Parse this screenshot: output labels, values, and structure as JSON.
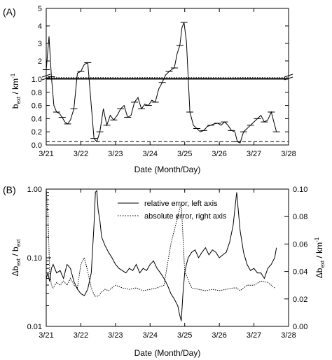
{
  "chart_data": [
    {
      "panel": "(A)",
      "type": "line",
      "ylabel_main": "b",
      "ylabel_sub": "ext",
      "ylabel_unit": " / km",
      "ylabel_exp": "-1",
      "xlabel": "Date (Month/Day)",
      "x_ticks": [
        "3/21",
        "3/22",
        "3/23",
        "3/24",
        "3/25",
        "3/26",
        "3/27",
        "3/28"
      ],
      "xlim": [
        21,
        28
      ],
      "y_upper_ticks": [
        "5",
        "4",
        "3",
        "2",
        "1"
      ],
      "y_upper_range": [
        1,
        5
      ],
      "y_lower_ticks": [
        "1.0",
        "0.8",
        "0.6",
        "0.4",
        "0.2",
        "0.0"
      ],
      "y_lower_range": [
        0,
        1.0
      ],
      "ref_lines": [
        {
          "style": "dotted",
          "value": 1.05
        },
        {
          "style": "dashed",
          "value": 0.05
        }
      ],
      "series": [
        {
          "style": "solid",
          "x": [
            21.0,
            21.08,
            21.15,
            21.22,
            21.3,
            21.38,
            21.46,
            21.54,
            21.62,
            21.7,
            21.8,
            21.9,
            22.0,
            22.1,
            22.2,
            22.3,
            22.38,
            22.46,
            22.55,
            22.65,
            22.75,
            22.85,
            22.95,
            23.05,
            23.15,
            23.25,
            23.35,
            23.45,
            23.55,
            23.65,
            23.75,
            23.85,
            23.95,
            24.05,
            24.15,
            24.25,
            24.35,
            24.45,
            24.55,
            24.62,
            24.7,
            24.78,
            24.86,
            24.92,
            24.98,
            25.05,
            25.15,
            25.25,
            25.35,
            25.45,
            25.55,
            25.65,
            25.75,
            25.85,
            25.95,
            26.05,
            26.15,
            26.25,
            26.35,
            26.45,
            26.52,
            26.6,
            26.7,
            26.8,
            26.9,
            27.0,
            27.1,
            27.2,
            27.3,
            27.4,
            27.5,
            27.6,
            27.65
          ],
          "y": [
            1.5,
            3.4,
            1.1,
            0.6,
            0.5,
            0.48,
            0.42,
            0.35,
            0.32,
            0.38,
            0.55,
            1.3,
            1.4,
            1.8,
            1.9,
            0.6,
            0.1,
            0.05,
            0.2,
            0.55,
            0.3,
            0.45,
            0.38,
            0.45,
            0.55,
            0.6,
            0.42,
            0.45,
            0.65,
            0.72,
            0.55,
            0.62,
            0.6,
            0.68,
            0.65,
            0.85,
            0.95,
            1.2,
            1.4,
            1.5,
            1.6,
            2.4,
            2.9,
            3.9,
            4.2,
            3.1,
            0.5,
            0.3,
            0.25,
            0.2,
            0.22,
            0.28,
            0.3,
            0.32,
            0.33,
            0.3,
            0.35,
            0.3,
            0.22,
            0.2,
            0.05,
            0.03,
            0.2,
            0.25,
            0.3,
            0.35,
            0.4,
            0.45,
            0.35,
            0.38,
            0.5,
            0.3,
            0.2
          ]
        }
      ]
    },
    {
      "panel": "(B)",
      "type": "line",
      "ylabel_left_main": "Δb",
      "ylabel_left_sub": "ext",
      "ylabel_left_unit": " / b",
      "ylabel_left_sub2": "ext",
      "ylabel_right_main": "Δb",
      "ylabel_right_sub": "ext",
      "ylabel_right_unit": " / km",
      "ylabel_right_exp": "-1",
      "xlabel": "Date (Month/Day)",
      "x_ticks": [
        "3/21",
        "3/22",
        "3/23",
        "3/24",
        "3/25",
        "3/26",
        "3/27",
        "3/28"
      ],
      "xlim": [
        21,
        28
      ],
      "y_left_scale": "log",
      "y_left_range": [
        0.01,
        1.0
      ],
      "y_left_ticks": [
        "1.00",
        "0.10",
        "0.01"
      ],
      "y_right_range": [
        0,
        0.1
      ],
      "y_right_ticks": [
        "0.10",
        "0.08",
        "0.06",
        "0.04",
        "0.02",
        "0.00"
      ],
      "legend_position": "top-right",
      "series": [
        {
          "name": "relative error, left axis",
          "style": "solid",
          "axis": "left",
          "x": [
            21.0,
            21.05,
            21.1,
            21.15,
            21.2,
            21.3,
            21.4,
            21.5,
            21.6,
            21.7,
            21.8,
            21.9,
            22.0,
            22.1,
            22.2,
            22.3,
            22.38,
            22.42,
            22.46,
            22.5,
            22.55,
            22.6,
            22.7,
            22.8,
            22.9,
            23.0,
            23.1,
            23.2,
            23.3,
            23.4,
            23.5,
            23.6,
            23.7,
            23.8,
            23.9,
            24.0,
            24.1,
            24.2,
            24.3,
            24.4,
            24.5,
            24.6,
            24.7,
            24.8,
            24.85,
            24.9,
            24.95,
            25.0,
            25.05,
            25.1,
            25.2,
            25.3,
            25.4,
            25.5,
            25.6,
            25.7,
            25.8,
            25.9,
            26.0,
            26.1,
            26.2,
            26.3,
            26.4,
            26.5,
            26.6,
            26.7,
            26.8,
            26.9,
            27.0,
            27.1,
            27.2,
            27.3,
            27.4,
            27.5,
            27.6,
            27.65
          ],
          "y": [
            0.05,
            0.06,
            0.045,
            0.07,
            0.08,
            0.06,
            0.065,
            0.05,
            0.08,
            0.07,
            0.045,
            0.035,
            0.03,
            0.028,
            0.035,
            0.06,
            0.3,
            0.9,
            0.95,
            0.5,
            0.35,
            0.2,
            0.15,
            0.12,
            0.1,
            0.08,
            0.07,
            0.065,
            0.06,
            0.07,
            0.065,
            0.08,
            0.06,
            0.07,
            0.065,
            0.08,
            0.09,
            0.07,
            0.06,
            0.05,
            0.04,
            0.03,
            0.025,
            0.02,
            0.015,
            0.012,
            0.03,
            0.06,
            0.08,
            0.1,
            0.12,
            0.13,
            0.1,
            0.12,
            0.14,
            0.11,
            0.13,
            0.12,
            0.1,
            0.11,
            0.12,
            0.17,
            0.3,
            0.9,
            0.25,
            0.12,
            0.08,
            0.065,
            0.07,
            0.06,
            0.06,
            0.05,
            0.07,
            0.08,
            0.1,
            0.14
          ]
        },
        {
          "name": "absolute error, right axis",
          "style": "dotted",
          "axis": "right",
          "x": [
            21.0,
            21.05,
            21.1,
            21.15,
            21.2,
            21.3,
            21.4,
            21.5,
            21.6,
            21.7,
            21.8,
            21.9,
            22.0,
            22.1,
            22.2,
            22.3,
            22.4,
            22.5,
            22.6,
            22.7,
            22.8,
            22.9,
            23.0,
            23.2,
            23.4,
            23.6,
            23.8,
            24.0,
            24.2,
            24.4,
            24.6,
            24.7,
            24.8,
            24.85,
            24.9,
            25.0,
            25.2,
            25.4,
            25.6,
            25.8,
            26.0,
            26.2,
            26.4,
            26.5,
            26.6,
            26.8,
            27.0,
            27.2,
            27.4,
            27.6
          ],
          "y": [
            0.1,
            0.08,
            0.04,
            0.03,
            0.028,
            0.032,
            0.03,
            0.033,
            0.03,
            0.035,
            0.03,
            0.028,
            0.045,
            0.05,
            0.04,
            0.028,
            0.022,
            0.022,
            0.025,
            0.027,
            0.026,
            0.028,
            0.03,
            0.028,
            0.027,
            0.028,
            0.026,
            0.027,
            0.028,
            0.03,
            0.06,
            0.07,
            0.08,
            0.085,
            0.09,
            0.04,
            0.028,
            0.027,
            0.026,
            0.027,
            0.026,
            0.027,
            0.028,
            0.028,
            0.026,
            0.03,
            0.03,
            0.033,
            0.032,
            0.028
          ]
        }
      ]
    }
  ]
}
